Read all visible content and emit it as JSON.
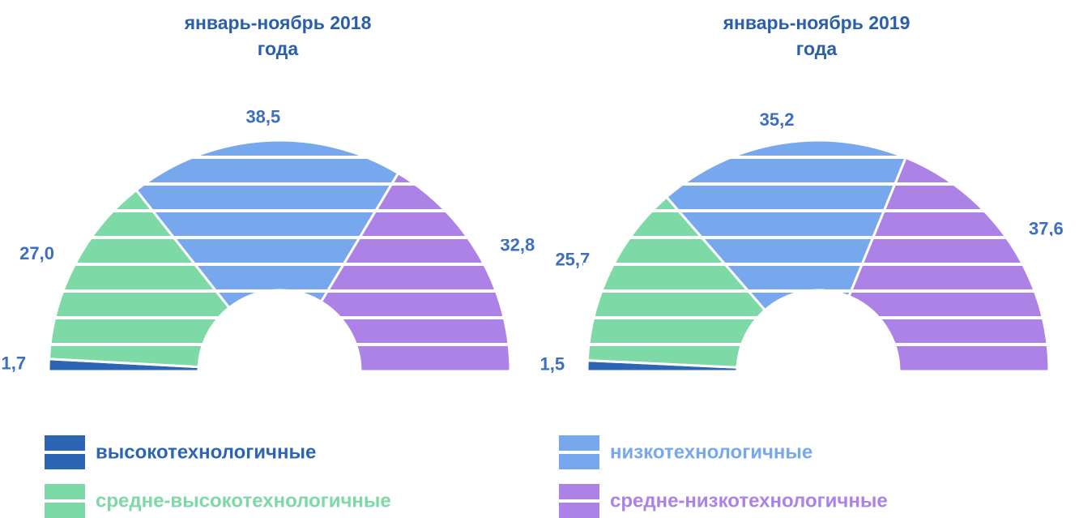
{
  "legend": {
    "labels": [
      "высокотехнологичные",
      "средне-высокотехнологичные",
      "низкотехнологичные",
      "средне-низкотехнологичные"
    ],
    "colors": [
      "#2d65b5",
      "#7dd9a5",
      "#77a7ec",
      "#ad82e6"
    ]
  },
  "chart_data": [
    {
      "type": "semidonut",
      "title": "январь-ноябрь 2018 года",
      "values": [
        1.7,
        27.0,
        38.5,
        32.8
      ],
      "value_labels": [
        "1,7",
        "27,0",
        "38,5",
        "32,8"
      ]
    },
    {
      "type": "semidonut",
      "title": "январь-ноябрь 2019 года",
      "values": [
        1.5,
        25.7,
        35.2,
        37.6
      ],
      "value_labels": [
        "1,5",
        "25,7",
        "35,2",
        "37,6"
      ]
    }
  ]
}
